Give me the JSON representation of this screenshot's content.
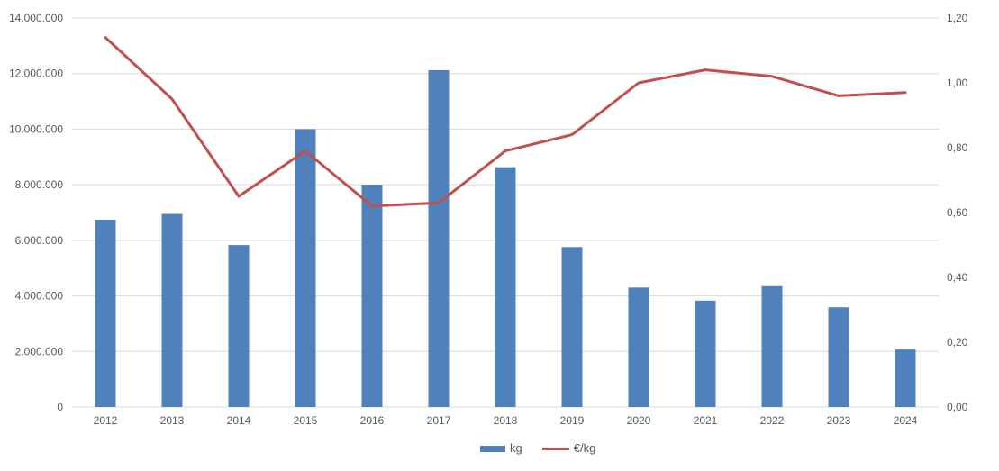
{
  "chart_data": {
    "type": "bar",
    "subtype": "combo-bar-line-dual-axis",
    "title": "",
    "xlabel": "",
    "ylabel_left": "kg",
    "ylabel_right": "€/kg",
    "grid": true,
    "legend_position": "bottom",
    "categories": [
      "2012",
      "2013",
      "2014",
      "2015",
      "2016",
      "2017",
      "2018",
      "2019",
      "2020",
      "2021",
      "2022",
      "2023",
      "2024"
    ],
    "series": [
      {
        "name": "kg",
        "type": "bar",
        "axis": "left",
        "color": "#4F81BD",
        "values": [
          6740000,
          6950000,
          5830000,
          10000000,
          8000000,
          12120000,
          8630000,
          5760000,
          4300000,
          3830000,
          4350000,
          3590000,
          2070000
        ]
      },
      {
        "name": "€/kg",
        "type": "line",
        "axis": "right",
        "color": "#C0504D",
        "values": [
          1.14,
          0.95,
          0.65,
          0.79,
          0.62,
          0.63,
          0.79,
          0.84,
          1.0,
          1.04,
          1.02,
          0.96,
          0.97
        ]
      }
    ],
    "y_left": {
      "min": 0,
      "max": 14000000,
      "step": 2000000,
      "tick_labels": [
        "0",
        "2.000.000",
        "4.000.000",
        "6.000.000",
        "8.000.000",
        "10.000.000",
        "12.000.000",
        "14.000.000"
      ]
    },
    "y_right": {
      "min": 0,
      "max": 1.2,
      "step": 0.2,
      "tick_labels": [
        "0,00",
        "0,20",
        "0,40",
        "0,60",
        "0,80",
        "1,00",
        "1,20"
      ]
    },
    "colors": {
      "grid": "#D9D9D9",
      "axis_line": "#D9D9D9",
      "text": "#595959"
    }
  }
}
